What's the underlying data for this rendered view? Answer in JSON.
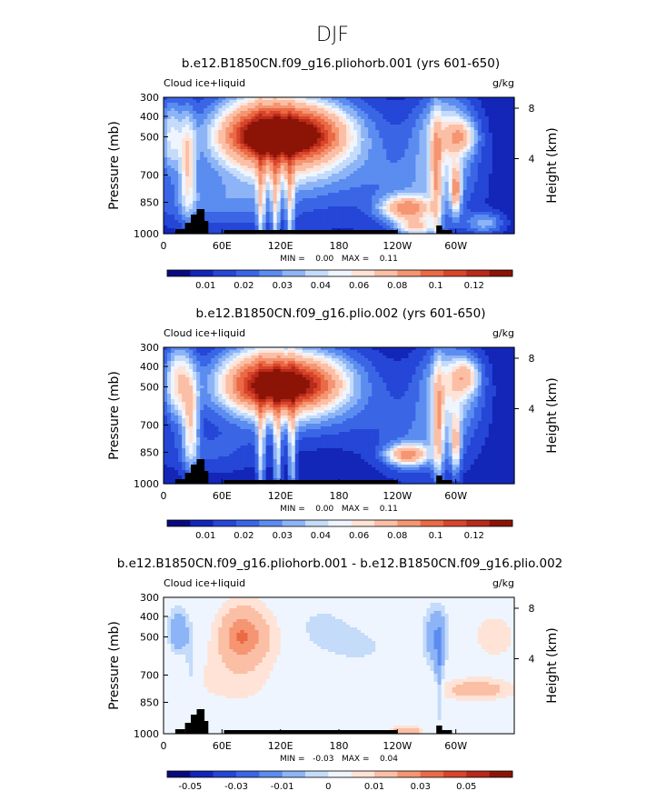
{
  "page_title": "DJF",
  "chart_data": [
    {
      "type": "heatmap",
      "title": "b.e12.B1850CN.f09_g16.pliohorb.001 (yrs 601-650)",
      "field_label": "Cloud ice+liquid",
      "units": "g/kg",
      "ylabel": "Pressure (mb)",
      "ylabel_right": "Height (km)",
      "x_ticks": [
        "0",
        "60E",
        "120E",
        "180",
        "120W",
        "60W"
      ],
      "y_ticks": [
        "300",
        "400",
        "500",
        "700",
        "850",
        "1000"
      ],
      "y2_ticks": [
        "8",
        "4"
      ],
      "stats": "MIN =    0.00   MAX =    0.11",
      "colorbar_labels": [
        "0.01",
        "0.02",
        "0.03",
        "0.04",
        "0.06",
        "0.08",
        "0.1",
        "0.12"
      ],
      "colorbar_colors": [
        "#0a0a80",
        "#1326b8",
        "#2546d6",
        "#3a66e6",
        "#5b8cf0",
        "#8db4f6",
        "#c4dbfa",
        "#eef5ff",
        "#ffe3d6",
        "#fbbfa6",
        "#f59572",
        "#ea6a45",
        "#d8452a",
        "#b82a1a",
        "#8c1406"
      ],
      "blobs": [
        {
          "lon": 120,
          "p": 500,
          "rlon": 70,
          "rp": 220,
          "v": 0.055
        },
        {
          "lon": 120,
          "p": 500,
          "rlon": 45,
          "rp": 90,
          "v": 0.04
        },
        {
          "lon": 105,
          "p": 500,
          "rlon": 18,
          "rp": 55,
          "v": 0.04
        },
        {
          "lon": 135,
          "p": 500,
          "rlon": 18,
          "rp": 55,
          "v": 0.04
        },
        {
          "lon": 95,
          "p": 450,
          "rlon": 35,
          "rp": 160,
          "v": 0.02
        },
        {
          "lon": 150,
          "p": 470,
          "rlon": 40,
          "rp": 130,
          "v": 0.02
        },
        {
          "lon": 100,
          "p": 800,
          "rlon": 4,
          "rp": 380,
          "v": 0.025
        },
        {
          "lon": 115,
          "p": 800,
          "rlon": 4,
          "rp": 380,
          "v": 0.025
        },
        {
          "lon": 130,
          "p": 800,
          "rlon": 4,
          "rp": 380,
          "v": 0.025
        },
        {
          "lon": 8,
          "p": 500,
          "rlon": 12,
          "rp": 200,
          "v": 0.025
        },
        {
          "lon": 25,
          "p": 650,
          "rlon": 8,
          "rp": 260,
          "v": 0.03
        },
        {
          "lon": 45,
          "p": 850,
          "rlon": 70,
          "rp": 120,
          "v": 0.012
        },
        {
          "lon": 120,
          "p": 700,
          "rlon": 120,
          "rp": 330,
          "v": 0.008
        },
        {
          "lon": 290,
          "p": 500,
          "rlon": 30,
          "rp": 230,
          "v": 0.03
        },
        {
          "lon": 305,
          "p": 500,
          "rlon": 15,
          "rp": 80,
          "v": 0.025
        },
        {
          "lon": 280,
          "p": 700,
          "rlon": 5,
          "rp": 300,
          "v": 0.03
        },
        {
          "lon": 300,
          "p": 780,
          "rlon": 5,
          "rp": 120,
          "v": 0.04
        },
        {
          "lon": 250,
          "p": 880,
          "rlon": 25,
          "rp": 60,
          "v": 0.045
        },
        {
          "lon": 260,
          "p": 970,
          "rlon": 20,
          "rp": 40,
          "v": 0.03
        },
        {
          "lon": 330,
          "p": 950,
          "rlon": 20,
          "rp": 50,
          "v": 0.02
        },
        {
          "lon": 270,
          "p": 820,
          "rlon": 50,
          "rp": 180,
          "v": 0.012
        },
        {
          "lon": 230,
          "p": 650,
          "rlon": 100,
          "rp": 300,
          "v": 0.006
        }
      ]
    },
    {
      "type": "heatmap",
      "title": "b.e12.B1850CN.f09_g16.plio.002 (yrs 601-650)",
      "field_label": "Cloud ice+liquid",
      "units": "g/kg",
      "ylabel": "Pressure (mb)",
      "ylabel_right": "Height (km)",
      "x_ticks": [
        "0",
        "60E",
        "120E",
        "180",
        "120W",
        "60W"
      ],
      "y_ticks": [
        "300",
        "400",
        "500",
        "700",
        "850",
        "1000"
      ],
      "y2_ticks": [
        "8",
        "4"
      ],
      "stats": "MIN =    0.00   MAX =    0.11",
      "colorbar_labels": [
        "0.01",
        "0.02",
        "0.03",
        "0.04",
        "0.06",
        "0.08",
        "0.1",
        "0.12"
      ],
      "colorbar_colors": [
        "#0a0a80",
        "#1326b8",
        "#2546d6",
        "#3a66e6",
        "#5b8cf0",
        "#8db4f6",
        "#c4dbfa",
        "#eef5ff",
        "#ffe3d6",
        "#fbbfa6",
        "#f59572",
        "#ea6a45",
        "#d8452a",
        "#b82a1a",
        "#8c1406"
      ],
      "blobs": [
        {
          "lon": 120,
          "p": 500,
          "rlon": 70,
          "rp": 200,
          "v": 0.05
        },
        {
          "lon": 120,
          "p": 500,
          "rlon": 40,
          "rp": 85,
          "v": 0.045
        },
        {
          "lon": 95,
          "p": 440,
          "rlon": 35,
          "rp": 160,
          "v": 0.02
        },
        {
          "lon": 150,
          "p": 460,
          "rlon": 40,
          "rp": 130,
          "v": 0.02
        },
        {
          "lon": 100,
          "p": 800,
          "rlon": 4,
          "rp": 380,
          "v": 0.025
        },
        {
          "lon": 117,
          "p": 800,
          "rlon": 4,
          "rp": 380,
          "v": 0.025
        },
        {
          "lon": 132,
          "p": 800,
          "rlon": 4,
          "rp": 380,
          "v": 0.025
        },
        {
          "lon": 15,
          "p": 480,
          "rlon": 15,
          "rp": 200,
          "v": 0.035
        },
        {
          "lon": 28,
          "p": 700,
          "rlon": 8,
          "rp": 240,
          "v": 0.03
        },
        {
          "lon": 45,
          "p": 850,
          "rlon": 60,
          "rp": 120,
          "v": 0.01
        },
        {
          "lon": 295,
          "p": 500,
          "rlon": 30,
          "rp": 220,
          "v": 0.03
        },
        {
          "lon": 310,
          "p": 450,
          "rlon": 14,
          "rp": 80,
          "v": 0.025
        },
        {
          "lon": 282,
          "p": 700,
          "rlon": 5,
          "rp": 300,
          "v": 0.03
        },
        {
          "lon": 300,
          "p": 800,
          "rlon": 5,
          "rp": 150,
          "v": 0.03
        },
        {
          "lon": 250,
          "p": 860,
          "rlon": 20,
          "rp": 50,
          "v": 0.045
        },
        {
          "lon": 270,
          "p": 820,
          "rlon": 45,
          "rp": 180,
          "v": 0.012
        },
        {
          "lon": 230,
          "p": 650,
          "rlon": 100,
          "rp": 300,
          "v": 0.006
        }
      ]
    },
    {
      "type": "heatmap",
      "title": "b.e12.B1850CN.f09_g16.pliohorb.001 - b.e12.B1850CN.f09_g16.plio.002",
      "field_label": "Cloud ice+liquid",
      "units": "g/kg",
      "ylabel": "Pressure (mb)",
      "ylabel_right": "Height (km)",
      "x_ticks": [
        "0",
        "60E",
        "120E",
        "180",
        "120W",
        "60W"
      ],
      "y_ticks": [
        "300",
        "400",
        "500",
        "700",
        "850",
        "1000"
      ],
      "y2_ticks": [
        "8",
        "4"
      ],
      "stats": "MIN =   -0.03   MAX =    0.04",
      "colorbar_labels": [
        "-0.05",
        "-0.03",
        "-0.01",
        "0",
        "0.01",
        "0.03",
        "0.05"
      ],
      "colorbar_colors": [
        "#0a0a80",
        "#1326b8",
        "#2546d6",
        "#3a66e6",
        "#5b8cf0",
        "#8db4f6",
        "#c4dbfa",
        "#eef5ff",
        "#ffe3d6",
        "#fbbfa6",
        "#f59572",
        "#ea6a45",
        "#d8452a",
        "#b82a1a",
        "#8c1406"
      ],
      "blobs": [
        {
          "lon": 15,
          "p": 480,
          "rlon": 10,
          "rp": 120,
          "v": -0.02
        },
        {
          "lon": 28,
          "p": 650,
          "rlon": 6,
          "rp": 200,
          "v": -0.01
        },
        {
          "lon": 80,
          "p": 500,
          "rlon": 25,
          "rp": 180,
          "v": 0.02
        },
        {
          "lon": 80,
          "p": 500,
          "rlon": 15,
          "rp": 80,
          "v": 0.01
        },
        {
          "lon": 110,
          "p": 500,
          "rlon": 25,
          "rp": 150,
          "v": 0.005
        },
        {
          "lon": 160,
          "p": 450,
          "rlon": 30,
          "rp": 120,
          "v": -0.006
        },
        {
          "lon": 200,
          "p": 550,
          "rlon": 40,
          "rp": 130,
          "v": -0.006
        },
        {
          "lon": 280,
          "p": 500,
          "rlon": 12,
          "rp": 150,
          "v": -0.02
        },
        {
          "lon": 283,
          "p": 720,
          "rlon": 4,
          "rp": 200,
          "v": -0.015
        },
        {
          "lon": 320,
          "p": 780,
          "rlon": 40,
          "rp": 60,
          "v": 0.015
        },
        {
          "lon": 340,
          "p": 500,
          "rlon": 30,
          "rp": 160,
          "v": 0.007
        },
        {
          "lon": 250,
          "p": 985,
          "rlon": 15,
          "rp": 20,
          "v": 0.02
        },
        {
          "lon": 40,
          "p": 720,
          "rlon": 60,
          "rp": 200,
          "v": 0.004
        },
        {
          "lon": 120,
          "p": 820,
          "rlon": 80,
          "rp": 150,
          "v": 0.003
        },
        {
          "lon": 215,
          "p": 750,
          "rlon": 30,
          "rp": 60,
          "v": -0.004
        }
      ]
    }
  ]
}
